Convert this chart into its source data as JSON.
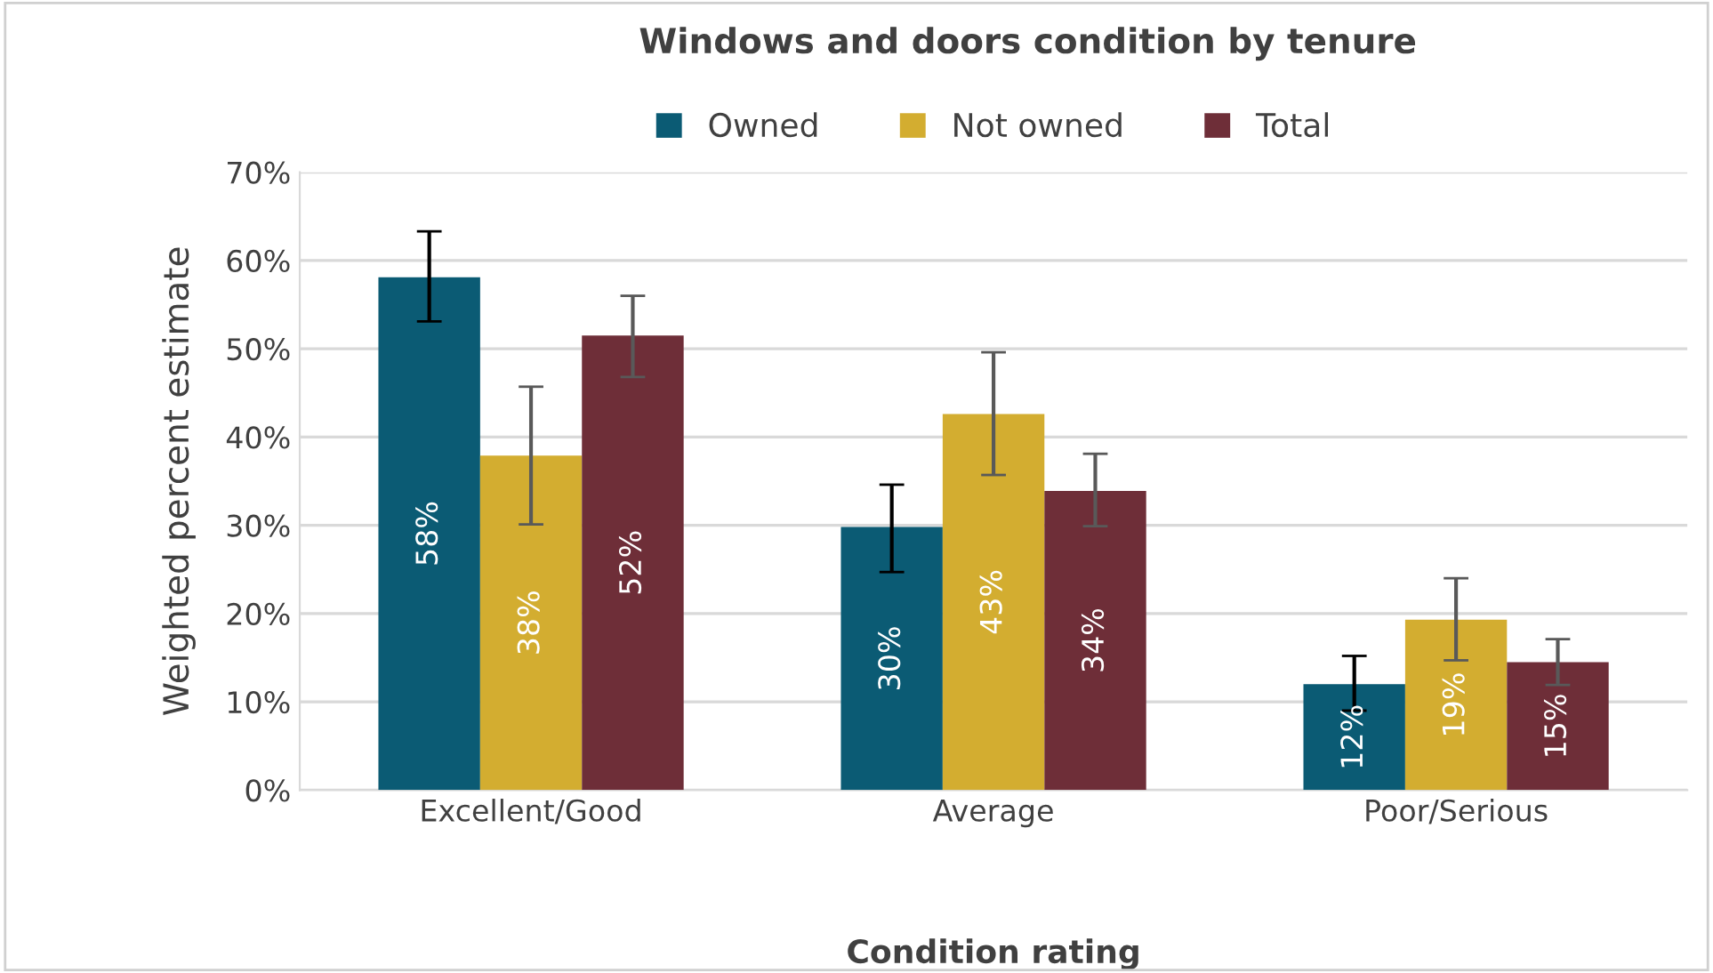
{
  "chart_data": {
    "type": "bar",
    "title": "Windows and doors condition by tenure",
    "xlabel": "Condition rating",
    "ylabel": "Weighted percent estimate",
    "categories": [
      "Excellent/Good",
      "Average",
      "Poor/Serious"
    ],
    "series": [
      {
        "name": "Owned",
        "color": "#0b5b74",
        "values": [
          58.1,
          29.8,
          12.0
        ],
        "errors": [
          [
            53.1,
            63.3
          ],
          [
            24.7,
            34.6
          ],
          [
            9.0,
            15.2
          ]
        ],
        "value_labels": [
          "58%",
          "30%",
          "12%"
        ]
      },
      {
        "name": "Not owned",
        "color": "#d3ad30",
        "values": [
          37.9,
          42.6,
          19.3
        ],
        "errors": [
          [
            30.1,
            45.7
          ],
          [
            35.7,
            49.6
          ],
          [
            14.7,
            24.0
          ]
        ],
        "value_labels": [
          "38%",
          "43%",
          "19%"
        ]
      },
      {
        "name": "Total",
        "color": "#6e2e38",
        "values": [
          51.5,
          33.9,
          14.5
        ],
        "errors": [
          [
            46.8,
            56.0
          ],
          [
            29.9,
            38.1
          ],
          [
            11.9,
            17.1
          ]
        ],
        "value_labels": [
          "52%",
          "34%",
          "15%"
        ]
      }
    ],
    "ylim": [
      0,
      70
    ],
    "yticks": [
      {
        "value": 0,
        "label": "0%"
      },
      {
        "value": 10,
        "label": "10%"
      },
      {
        "value": 20,
        "label": "20%"
      },
      {
        "value": 30,
        "label": "30%"
      },
      {
        "value": 40,
        "label": "40%"
      },
      {
        "value": 50,
        "label": "50%"
      },
      {
        "value": 60,
        "label": "60%"
      },
      {
        "value": 70,
        "label": "70%"
      }
    ],
    "grid": "y",
    "legend": "top"
  }
}
